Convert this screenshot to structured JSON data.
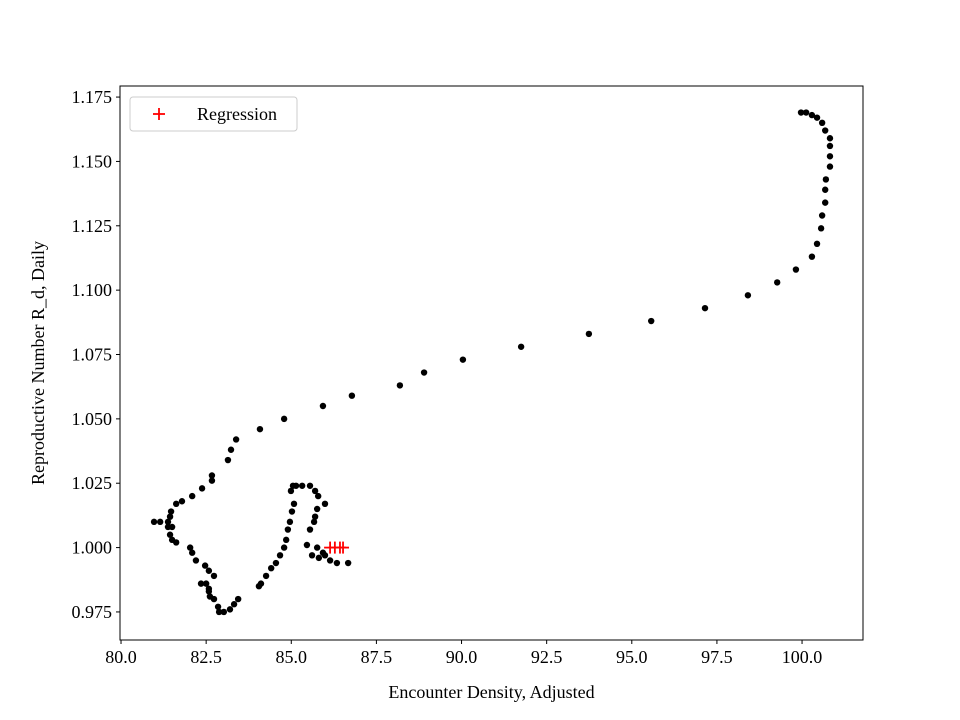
{
  "chart_data": {
    "type": "scatter",
    "xlabel": "Encounter Density, Adjusted",
    "ylabel": "Reproductive Number R_d, Daily",
    "xlim": [
      79.97,
      101.79
    ],
    "ylim": [
      0.9641,
      1.1793
    ],
    "xticks": [
      {
        "value": 80,
        "label": "80.0"
      },
      {
        "value": 82.5,
        "label": "82.5"
      },
      {
        "value": 85,
        "label": "85.0"
      },
      {
        "value": 87.5,
        "label": "87.5"
      },
      {
        "value": 90,
        "label": "90.0"
      },
      {
        "value": 92.5,
        "label": "92.5"
      },
      {
        "value": 95,
        "label": "95.0"
      },
      {
        "value": 97.5,
        "label": "97.5"
      },
      {
        "value": 100,
        "label": "100.0"
      }
    ],
    "yticks": [
      {
        "value": 0.975,
        "label": "0.975"
      },
      {
        "value": 1,
        "label": "1.000"
      },
      {
        "value": 1.025,
        "label": "1.025"
      },
      {
        "value": 1.05,
        "label": "1.050"
      },
      {
        "value": 1.075,
        "label": "1.075"
      },
      {
        "value": 1.1,
        "label": "1.100"
      },
      {
        "value": 1.125,
        "label": "1.125"
      },
      {
        "value": 1.15,
        "label": "1.150"
      },
      {
        "value": 1.175,
        "label": "1.175"
      }
    ],
    "legend": "upper left",
    "series": [
      {
        "color": "#000000",
        "marker": "dot",
        "x": [
          99.97,
          100.12,
          100.29,
          100.44,
          100.59,
          100.68,
          100.82,
          100.82,
          100.82,
          100.82,
          100.7,
          100.68,
          100.68,
          100.59,
          100.56,
          100.44,
          100.29,
          99.82,
          99.27,
          98.41,
          97.15,
          95.57,
          93.74,
          91.75,
          90.04,
          88.9,
          88.19,
          86.78,
          85.93,
          84.79,
          84.08,
          83.38,
          83.23,
          83.14,
          82.67,
          82.67,
          82.38,
          82.09,
          81.79,
          81.62,
          81.47,
          81.44,
          81.38,
          81.15,
          80.97,
          81.38,
          81.5,
          81.44,
          81.5,
          81.62,
          82.03,
          82.09,
          82.2,
          82.47,
          82.58,
          82.73,
          82.5,
          82.35,
          82.58,
          82.58,
          82.61,
          82.73,
          82.85,
          82.88,
          83.02,
          83.2,
          83.32,
          83.44,
          84.05,
          84.11,
          84.26,
          84.41,
          84.55,
          84.67,
          84.79,
          84.85,
          84.9,
          84.96,
          85.02,
          85.08,
          84.99,
          85.05,
          85.14,
          85.32,
          85.55,
          85.7,
          85.79,
          85.99,
          85.76,
          85.7,
          85.67,
          85.55,
          85.46,
          85.76,
          85.93,
          86.14,
          86.34,
          86.67,
          85.99,
          85.81,
          85.61
        ],
        "values": [
          1.169,
          1.169,
          1.168,
          1.167,
          1.165,
          1.162,
          1.159,
          1.156,
          1.152,
          1.148,
          1.143,
          1.139,
          1.134,
          1.129,
          1.124,
          1.118,
          1.113,
          1.108,
          1.103,
          1.098,
          1.093,
          1.088,
          1.083,
          1.078,
          1.073,
          1.068,
          1.063,
          1.059,
          1.055,
          1.05,
          1.046,
          1.042,
          1.038,
          1.034,
          1.028,
          1.026,
          1.023,
          1.02,
          1.018,
          1.017,
          1.014,
          1.012,
          1.01,
          1.01,
          1.01,
          1.008,
          1.008,
          1.005,
          1.003,
          1.002,
          1.0,
          0.998,
          0.995,
          0.993,
          0.991,
          0.989,
          0.986,
          0.986,
          0.984,
          0.983,
          0.981,
          0.98,
          0.977,
          0.975,
          0.975,
          0.976,
          0.978,
          0.98,
          0.985,
          0.986,
          0.989,
          0.992,
          0.994,
          0.997,
          1.0,
          1.003,
          1.007,
          1.01,
          1.014,
          1.017,
          1.022,
          1.024,
          1.024,
          1.024,
          1.024,
          1.022,
          1.02,
          1.017,
          1.015,
          1.012,
          1.01,
          1.007,
          1.001,
          1.0,
          0.998,
          0.995,
          0.994,
          0.994,
          0.997,
          0.996,
          0.997
        ]
      },
      {
        "name": "Regression",
        "color": "#ff0000",
        "marker": "plus",
        "x": [
          86.14,
          86.28,
          86.43,
          86.52
        ],
        "values": [
          1.0,
          1.0,
          1.0,
          1.0
        ]
      }
    ]
  }
}
